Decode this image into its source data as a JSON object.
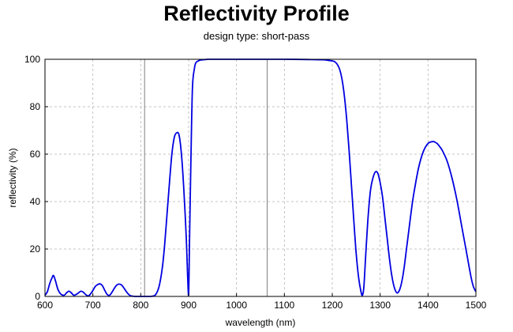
{
  "chart_data": {
    "type": "line",
    "title": "Reflectivity Profile",
    "subtitle": "design type: short-pass",
    "xlabel": "wavelength (nm)",
    "ylabel": "reflectivity (%)",
    "xlim": [
      600,
      1500
    ],
    "ylim": [
      0,
      100
    ],
    "xticks": [
      600,
      700,
      800,
      900,
      1000,
      1100,
      1200,
      1300,
      1400,
      1500
    ],
    "yticks": [
      0,
      20,
      40,
      60,
      80,
      100
    ],
    "grid": true,
    "reference_lines_x": [
      808,
      1064
    ],
    "line_color": "#0000e0",
    "series": [
      {
        "x": [
          600,
          605,
          610,
          615,
          618,
          622,
          627,
          633,
          640,
          645,
          650,
          655,
          660,
          665,
          670,
          675,
          680,
          685,
          690,
          695,
          700,
          705,
          710,
          715,
          720,
          725,
          730,
          735,
          740,
          745,
          750,
          755,
          760,
          765,
          770,
          775,
          780,
          790,
          800,
          810,
          820,
          830,
          838,
          845,
          850,
          855,
          860,
          865,
          870,
          875,
          880,
          885,
          890,
          895,
          898,
          900,
          902,
          905,
          908,
          912,
          915,
          920,
          925,
          930,
          935,
          940,
          950,
          960,
          980,
          1000,
          1050,
          1100,
          1150,
          1180,
          1190,
          1200,
          1205,
          1210,
          1215,
          1220,
          1225,
          1230,
          1235,
          1240,
          1245,
          1250,
          1255,
          1260,
          1263,
          1266,
          1270,
          1275,
          1280,
          1285,
          1290,
          1295,
          1300,
          1305,
          1310,
          1315,
          1320,
          1325,
          1330,
          1335,
          1340,
          1345,
          1350,
          1355,
          1360,
          1365,
          1370,
          1380,
          1390,
          1400,
          1410,
          1415,
          1420,
          1425,
          1430,
          1440,
          1450,
          1460,
          1470,
          1480,
          1490,
          1495,
          1500
        ],
        "y": [
          0.5,
          2,
          5.5,
          8,
          8.8,
          6.5,
          3,
          1,
          0.5,
          1.5,
          2.2,
          1.5,
          0.5,
          0.8,
          1.5,
          2.2,
          1.8,
          0.8,
          0.2,
          1,
          2.5,
          4.2,
          5,
          5.3,
          4.5,
          2.5,
          0.8,
          0.5,
          1.8,
          3.5,
          4.8,
          5.2,
          4.8,
          3.5,
          2,
          0.8,
          0.2,
          0,
          0,
          0,
          0,
          0.5,
          4,
          12,
          22,
          35,
          48,
          60,
          67,
          69,
          68,
          60,
          45,
          25,
          8,
          0.5,
          25,
          60,
          88,
          96,
          98.5,
          99.3,
          99.7,
          99.8,
          99.9,
          100,
          100,
          100,
          100,
          100,
          100,
          100,
          99.9,
          99.8,
          99.6,
          99.3,
          99,
          98,
          96,
          92,
          85,
          75,
          62,
          47,
          32,
          18,
          8,
          2,
          0.5,
          4,
          18,
          34,
          45,
          50,
          52.5,
          52,
          48,
          42,
          33,
          24,
          15,
          8,
          3.5,
          1.5,
          2.5,
          6,
          12,
          20,
          28,
          36,
          43,
          54,
          61,
          64.5,
          65.3,
          65,
          64.3,
          63,
          61.5,
          57,
          50,
          41,
          30,
          19,
          8,
          4,
          2
        ]
      }
    ]
  }
}
